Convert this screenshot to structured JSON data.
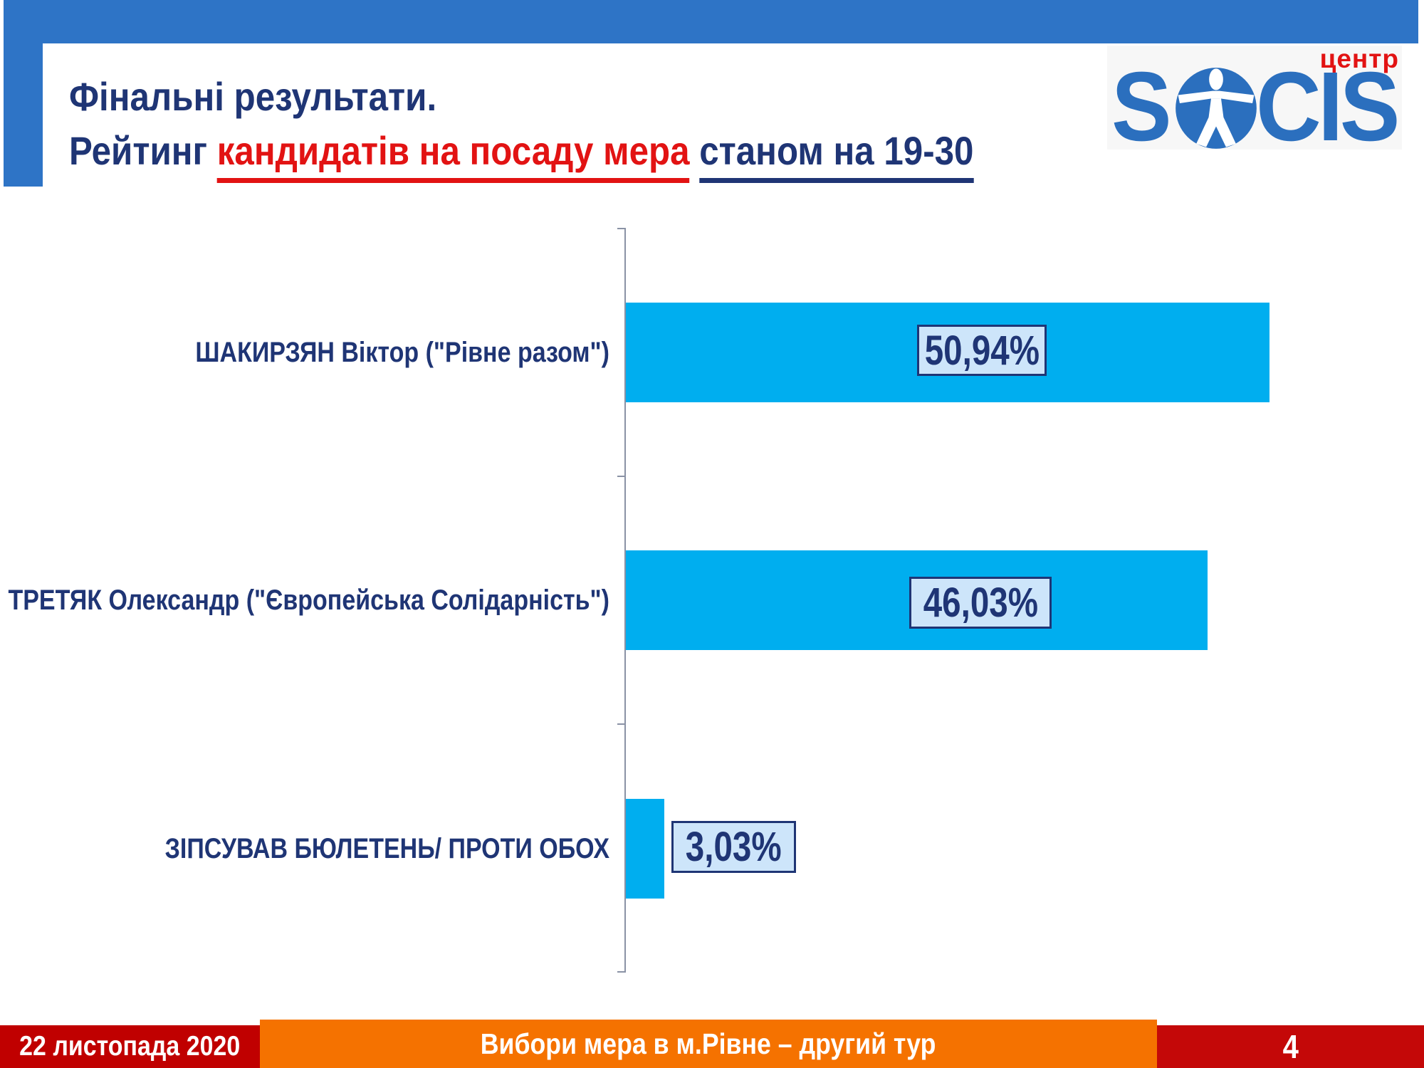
{
  "header": {
    "title_line1": "Фінальні результати.",
    "title_line2": {
      "prefix": "Рейтинг ",
      "highlight": "кандидатів на посаду мера",
      "suffix": "станом на 19-30"
    }
  },
  "logo": {
    "s": "S",
    "cis": "CIS",
    "center_label": "центр",
    "man_icon": "vitruvian-man-icon",
    "blue": "#2B6FBE",
    "red": "#E21313"
  },
  "chart_data": {
    "type": "bar",
    "orientation": "horizontal",
    "categories": [
      "ШАКИРЗЯН Віктор (\"Рівне разом\")",
      "ТРЕТЯК Олександр (\"Європейська Солідарність\")",
      "ЗІПСУВАВ БЮЛЕТЕНЬ/ ПРОТИ ОБОХ"
    ],
    "values": [
      50.94,
      46.03,
      3.03
    ],
    "value_labels": [
      "50,94%",
      "46,03%",
      "3,03%"
    ],
    "title": "",
    "xlabel": "",
    "ylabel": "",
    "xlim": [
      0,
      61
    ],
    "x_axis_labels_visible": false,
    "grid": false,
    "legend": "none",
    "bar_color": "#00AEEF",
    "value_box_bg": "#CDE5FA",
    "value_box_border": "#1F3575",
    "axis_color": "#8A92A5"
  },
  "footer": {
    "date": "22 листопада 2020",
    "center_text": "Вибори мера в м.Рівне – другий тур",
    "page_number": "4",
    "date_bg": "#C00000",
    "center_bg": "#F57200",
    "page_bg": "#C40808"
  },
  "colors": {
    "frame_blue": "#2E74C6",
    "navy_text": "#1F3575",
    "accent_red": "#E21313"
  }
}
